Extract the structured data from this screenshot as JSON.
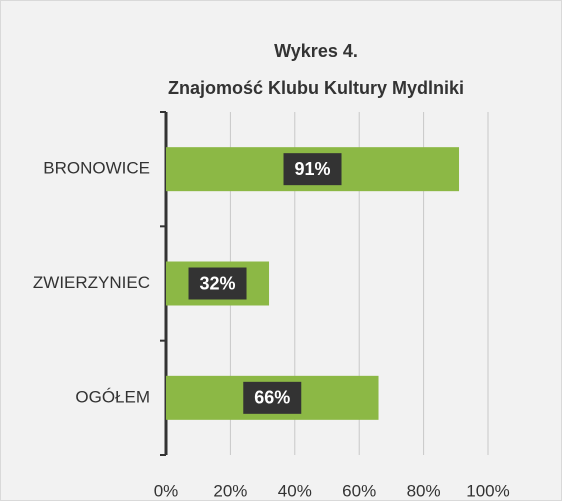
{
  "chart_data": {
    "type": "bar",
    "orientation": "horizontal",
    "title": [
      "Wykres 4.",
      "Znajomość  Klubu  Kultury Mydlniki"
    ],
    "categories": [
      "BRONOWICE",
      "ZWIERZYNIEC",
      "OGÓŁEM"
    ],
    "values": [
      91,
      32,
      66
    ],
    "value_labels": [
      "91%",
      "32%",
      "66%"
    ],
    "color": "#8cb845",
    "xlim": [
      0,
      100
    ],
    "xticks": [
      {
        "value": 0,
        "label": "0%"
      },
      {
        "value": 20,
        "label": "20%"
      },
      {
        "value": 40,
        "label": "40%"
      },
      {
        "value": 60,
        "label": "60%"
      },
      {
        "value": 80,
        "label": "80%"
      },
      {
        "value": 100,
        "label": "100%"
      }
    ],
    "grid": true
  }
}
